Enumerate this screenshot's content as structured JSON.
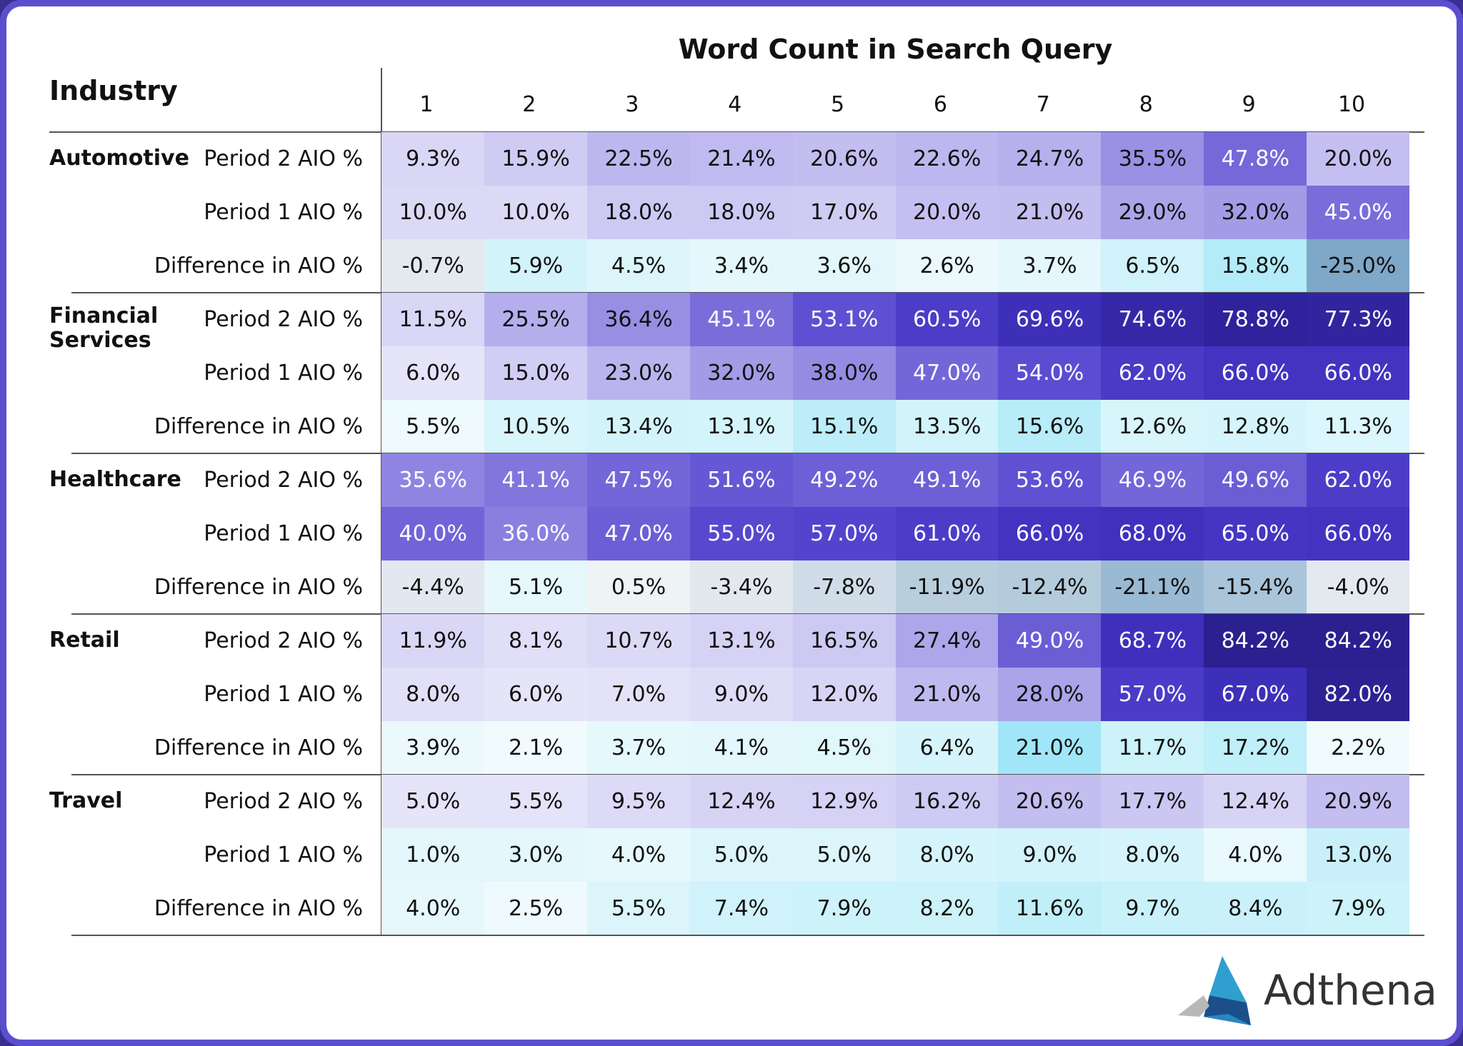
{
  "header": {
    "title": "Word Count in Search Query",
    "row_header": "Industry",
    "columns": [
      "1",
      "2",
      "3",
      "4",
      "5",
      "6",
      "7",
      "8",
      "9",
      "10"
    ]
  },
  "groups": [
    {
      "industry": "Automotive",
      "rows": [
        {
          "label": "Period 2 AIO %",
          "cells": [
            "9.3%",
            "15.9%",
            "22.5%",
            "21.4%",
            "20.6%",
            "22.6%",
            "24.7%",
            "35.5%",
            "47.8%",
            "20.0%"
          ],
          "colors": [
            "#d9d6f6",
            "#cfcbf3",
            "#bdb7ef",
            "#c0baf0",
            "#c3bdf0",
            "#bdb7ef",
            "#b6b0ed",
            "#9a90e4",
            "#7668d9",
            "#c5bff1"
          ]
        },
        {
          "label": "Period 1 AIO %",
          "cells": [
            "10.0%",
            "10.0%",
            "18.0%",
            "18.0%",
            "17.0%",
            "20.0%",
            "21.0%",
            "29.0%",
            "32.0%",
            "45.0%"
          ],
          "colors": [
            "#dcd9f6",
            "#dcd9f6",
            "#cdc9f3",
            "#cdc9f3",
            "#cfcbf3",
            "#c5bff1",
            "#c3bdf0",
            "#aca4e9",
            "#a49be7",
            "#7a6dda"
          ]
        },
        {
          "label": "Difference in AIO %",
          "cells": [
            "-0.7%",
            "5.9%",
            "4.5%",
            "3.4%",
            "3.6%",
            "2.6%",
            "3.7%",
            "6.5%",
            "15.8%",
            "-25.0%"
          ],
          "colors": [
            "#e3e9ef",
            "#d3f3fb",
            "#dcf5fb",
            "#e4f7fc",
            "#e2f7fc",
            "#ebf9fd",
            "#e3f7fc",
            "#d0f2fa",
            "#b3ebf9",
            "#7fa7c7"
          ]
        }
      ]
    },
    {
      "industry": "Financial Services",
      "rows": [
        {
          "label": "Period 2 AIO %",
          "cells": [
            "11.5%",
            "25.5%",
            "36.4%",
            "45.1%",
            "53.1%",
            "60.5%",
            "69.6%",
            "74.6%",
            "78.8%",
            "77.3%"
          ],
          "colors": [
            "#d9d6f6",
            "#b5aeed",
            "#988ee4",
            "#7a6dda",
            "#5e50d2",
            "#4b3dc8",
            "#3d30b8",
            "#3528a8",
            "#2e239c",
            "#30259f"
          ]
        },
        {
          "label": "Period 1 AIO %",
          "cells": [
            "6.0%",
            "15.0%",
            "23.0%",
            "32.0%",
            "38.0%",
            "47.0%",
            "54.0%",
            "62.0%",
            "66.0%",
            "66.0%"
          ],
          "colors": [
            "#e6e4f9",
            "#d1cdf4",
            "#bab4ee",
            "#a49be7",
            "#968be3",
            "#7366d8",
            "#5b4dd1",
            "#493bc5",
            "#4234c0",
            "#4234c0"
          ]
        },
        {
          "label": "Difference in AIO %",
          "cells": [
            "5.5%",
            "10.5%",
            "13.4%",
            "13.1%",
            "15.1%",
            "13.5%",
            "15.6%",
            "12.6%",
            "12.8%",
            "11.3%"
          ],
          "colors": [
            "#eefafd",
            "#d8f5fb",
            "#d3f3fb",
            "#d4f4fb",
            "#bcedf9",
            "#d1f3fa",
            "#b8ecf9",
            "#d7f5fb",
            "#d5f4fb",
            "#dbf6fc"
          ]
        }
      ]
    },
    {
      "industry": "Healthcare",
      "rows": [
        {
          "label": "Period 2 AIO %",
          "cells": [
            "35.6%",
            "41.1%",
            "47.5%",
            "51.6%",
            "49.2%",
            "49.1%",
            "53.6%",
            "46.9%",
            "49.6%",
            "62.0%"
          ],
          "colors": [
            "#8f84e1",
            "#8275dc",
            "#7366d8",
            "#6558d4",
            "#6d60d6",
            "#6d60d6",
            "#5f51d2",
            "#7366d8",
            "#6b5ed5",
            "#4b3dc8"
          ]
        },
        {
          "label": "Period 1 AIO %",
          "cells": [
            "40.0%",
            "36.0%",
            "47.0%",
            "55.0%",
            "57.0%",
            "61.0%",
            "66.0%",
            "68.0%",
            "65.0%",
            "66.0%"
          ],
          "colors": [
            "#7264d8",
            "#8a7fdf",
            "#6c5fd6",
            "#5748ce",
            "#5344cd",
            "#4b3dc8",
            "#4234c0",
            "#3f31bd",
            "#4436c2",
            "#4234c0"
          ]
        },
        {
          "label": "Difference in AIO %",
          "cells": [
            "-4.4%",
            "5.1%",
            "0.5%",
            "-3.4%",
            "-7.8%",
            "-11.9%",
            "-12.4%",
            "-21.1%",
            "-15.4%",
            "-4.0%"
          ],
          "colors": [
            "#e1e8ef",
            "#e6f8fc",
            "#eef3f5",
            "#e3e8ee",
            "#d0dde8",
            "#b8cedd",
            "#b4cbdc",
            "#9ab9d2",
            "#aac4d9",
            "#e3e9ef"
          ]
        }
      ]
    },
    {
      "industry": "Retail",
      "rows": [
        {
          "label": "Period 2 AIO %",
          "cells": [
            "11.9%",
            "8.1%",
            "10.7%",
            "13.1%",
            "16.5%",
            "27.4%",
            "49.0%",
            "68.7%",
            "84.2%",
            "84.2%"
          ],
          "colors": [
            "#dad7f6",
            "#e1def8",
            "#dcd9f6",
            "#d6d2f5",
            "#cdc9f3",
            "#aea6ea",
            "#6b5ed5",
            "#3e30bc",
            "#2a2090",
            "#2a2090"
          ]
        },
        {
          "label": "Period 1 AIO %",
          "cells": [
            "8.0%",
            "6.0%",
            "7.0%",
            "9.0%",
            "12.0%",
            "21.0%",
            "28.0%",
            "57.0%",
            "67.0%",
            "82.0%"
          ],
          "colors": [
            "#e2dff8",
            "#e6e4f9",
            "#e4e2f8",
            "#dfdcf7",
            "#d8d4f5",
            "#bfb9ef",
            "#aca4e9",
            "#4a3cc8",
            "#3d30b8",
            "#2c2294"
          ]
        },
        {
          "label": "Difference in AIO %",
          "cells": [
            "3.9%",
            "2.1%",
            "3.7%",
            "4.1%",
            "4.5%",
            "6.4%",
            "21.0%",
            "11.7%",
            "17.2%",
            "2.2%"
          ],
          "colors": [
            "#ebf9fd",
            "#f1fbfe",
            "#e5f8fc",
            "#e3f7fc",
            "#e0f7fc",
            "#d6f4fb",
            "#a0e6f8",
            "#ccf2fa",
            "#bfeff9",
            "#f0fbfe"
          ]
        }
      ]
    },
    {
      "industry": "Travel",
      "rows": [
        {
          "label": "Period 2 AIO %",
          "cells": [
            "5.0%",
            "5.5%",
            "9.5%",
            "12.4%",
            "12.9%",
            "16.2%",
            "20.6%",
            "17.7%",
            "12.4%",
            "20.9%"
          ],
          "colors": [
            "#e6e4f9",
            "#e5e3f9",
            "#dddaf7",
            "#d7d3f5",
            "#d6d2f5",
            "#cecaf3",
            "#c3bdf0",
            "#cbc6f2",
            "#d7d3f5",
            "#c3bdf0"
          ]
        },
        {
          "label": "Period 1 AIO %",
          "cells": [
            "1.0%",
            "3.0%",
            "4.0%",
            "5.0%",
            "5.0%",
            "8.0%",
            "9.0%",
            "8.0%",
            "4.0%",
            "13.0%"
          ],
          "colors": [
            "#e3f7fc",
            "#e3f7fc",
            "#e6f8fc",
            "#dcf5fb",
            "#dcf5fb",
            "#d6f4fb",
            "#d3f3fb",
            "#d6f4fb",
            "#e9f9fd",
            "#c9f0fa"
          ]
        },
        {
          "label": "Difference in AIO %",
          "cells": [
            "4.0%",
            "2.5%",
            "5.5%",
            "7.4%",
            "7.9%",
            "8.2%",
            "11.6%",
            "9.7%",
            "8.4%",
            "7.9%"
          ],
          "colors": [
            "#e6f8fc",
            "#eefafd",
            "#dcf5fb",
            "#d0f2fa",
            "#ccf2fa",
            "#ccf2fa",
            "#c0eff9",
            "#c8f1fa",
            "#caf1fa",
            "#ccf2fa"
          ]
        }
      ]
    }
  ],
  "logo": {
    "text": "Adthena"
  }
}
